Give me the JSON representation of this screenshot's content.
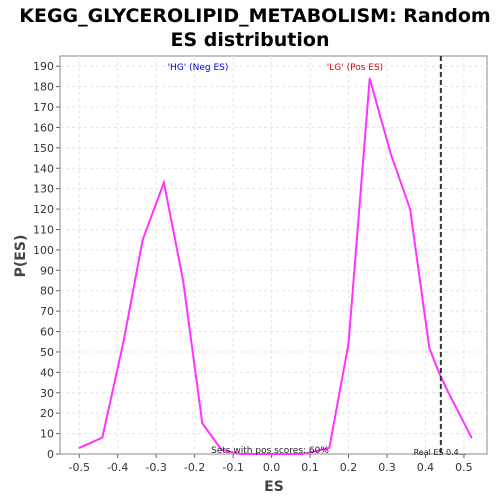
{
  "chart_data": {
    "type": "line",
    "title_line1": "KEGG_GLYCEROLIPID_METABOLISM: Random",
    "title_line2": "ES distribution",
    "xlabel": "ES",
    "ylabel": "P(ES)",
    "xlim": [
      -0.55,
      0.56
    ],
    "ylim": [
      0,
      195
    ],
    "xticks": [
      -0.5,
      -0.4,
      -0.3,
      -0.2,
      -0.1,
      0.0,
      0.1,
      0.2,
      0.3,
      0.4,
      0.5
    ],
    "yticks": [
      0,
      10,
      20,
      30,
      40,
      50,
      60,
      70,
      80,
      90,
      100,
      110,
      120,
      130,
      140,
      150,
      160,
      170,
      180,
      190
    ],
    "grid": true,
    "line_color": "#ff33ff",
    "series": [
      {
        "x": [
          -0.5,
          -0.44,
          -0.385,
          -0.335,
          -0.28,
          -0.23,
          -0.18,
          -0.13,
          -0.08,
          0.0,
          0.08,
          0.13,
          0.15,
          0.2,
          0.255,
          0.31,
          0.36,
          0.41,
          0.435,
          0.46,
          0.52
        ],
        "y": [
          3,
          8,
          55,
          105,
          133,
          85,
          15,
          2,
          0,
          0,
          0,
          2,
          3,
          54,
          184,
          147,
          120,
          52,
          40,
          30,
          8
        ]
      }
    ],
    "real_es": 0.44,
    "annotations": {
      "neg_label": "'HG' (Neg ES)",
      "pos_label": "'LG' (Pos ES)",
      "pos_scores": "Sets with pos scores: 60%",
      "real_es_label": "Real ES 0.4..."
    },
    "colors": {
      "neg": "#0000dd",
      "pos": "#dd0000",
      "real_es_line": "#333333"
    }
  }
}
